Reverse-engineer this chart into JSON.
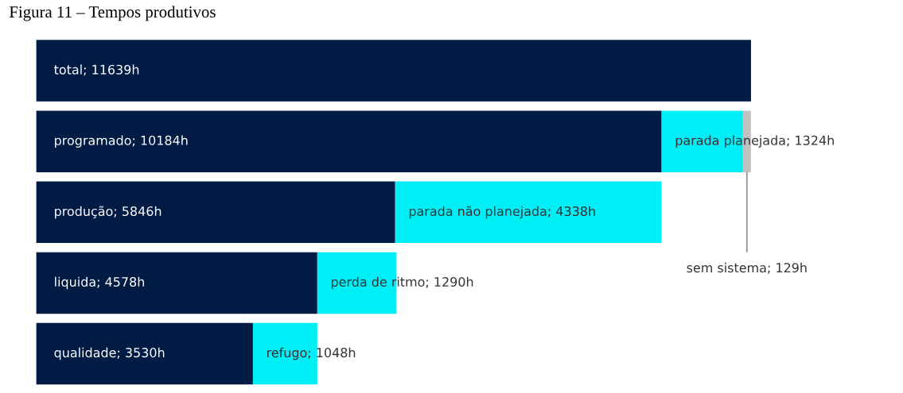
{
  "chart_data": {
    "type": "bar",
    "orientation": "horizontal",
    "stacked": true,
    "title": "Figura 11 – Tempos produtivos",
    "categories": [
      null,
      null,
      null,
      null,
      null
    ],
    "series": [
      {
        "color": "#001b44",
        "values": [
          11639,
          10184,
          5846,
          4578,
          3530
        ],
        "value_labels": [
          "total; 11639h",
          "programado; 10184h",
          "produção; 5846h",
          "liquida; 4578h",
          "qualidade; 3530h"
        ]
      },
      {
        "color": "#00eef5",
        "values": [
          null,
          1324,
          4338,
          1290,
          1048
        ],
        "value_labels": [
          null,
          "parada planejada; 1324h",
          "parada não planejada; 4338h",
          "perda de ritmo; 1290h",
          "refugo; 1048h"
        ]
      },
      {
        "color": "#c0c0c0",
        "values": [
          null,
          129,
          null,
          null,
          null
        ],
        "value_labels": [
          null,
          "sem sistema; 129h",
          null,
          null,
          null
        ]
      }
    ],
    "grid": false,
    "legend": false
  }
}
